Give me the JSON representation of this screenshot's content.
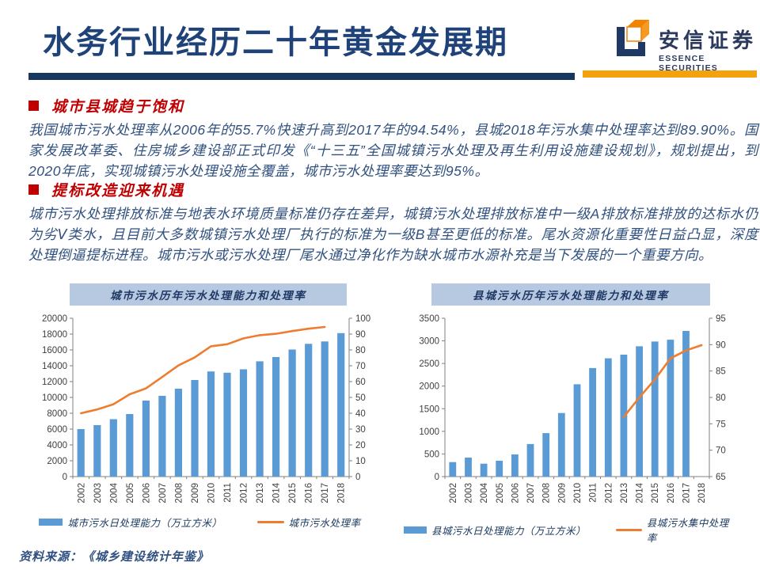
{
  "slide": {
    "title": "水务行业经历二十年黄金发展期",
    "source_note": "资料来源：《城乡建设统计年鉴》"
  },
  "logo": {
    "name_cn": "安信证券",
    "name_en": "ESSENCE SECURITIES"
  },
  "sections": [
    {
      "heading": "城市县城趋于饱和",
      "body": "我国城市污水处理率从2006年的55.7%快速升高到2017年的94.54%，县城2018年污水集中处理率达到89.90%。国家发展改革委、住房城乡建设部正式印发《“十三五”全国城镇污水处理及再生利用设施建设规划》，规划提出，到2020年底，实现城镇污水处理设施全覆盖，城市污水处理率要达到95%。"
    },
    {
      "heading": "提标改造迎来机遇",
      "body": "城市污水处理排放标准与地表水环境质量标准仍存在差异，城镇污水处理排放标准中一级A排放标准排放的达标水仍为劣Ⅴ类水，且目前大多数城镇污水处理厂执行的标准为一级B甚至更低的标准。尾水资源化重要性日益凸显，深度处理倒逼提标进程。城市污水或污水处理厂尾水通过净化作为缺水城市水源补充是当下发展的一个重要方向。"
    }
  ],
  "colors": {
    "title_blue": "#1F4379",
    "rule_blue": "#17375E",
    "rule_orange": "#F2A20C",
    "heading_red": "#C00000",
    "body_blue": "#31517F",
    "chart_title_bg": "#B6C9E0",
    "bar_blue": "#5B9BD5",
    "line_orange": "#ED7D31"
  },
  "chart_data": [
    {
      "type": "bar",
      "title": "城市污水历年污水处理能力和处理率",
      "categories": [
        "2002",
        "2003",
        "2004",
        "2005",
        "2006",
        "2007",
        "2008",
        "2009",
        "2010",
        "2011",
        "2012",
        "2013",
        "2014",
        "2015",
        "2016",
        "2017",
        "2018"
      ],
      "series": [
        {
          "name": "城市污水日处理能力（万立方米）",
          "type": "bar",
          "axis": "left",
          "values": [
            6000,
            6500,
            7250,
            7900,
            9600,
            10200,
            11100,
            12200,
            13280,
            13120,
            13550,
            14560,
            15100,
            16050,
            16770,
            17070,
            18120
          ]
        },
        {
          "name": "城市污水处理率",
          "type": "line",
          "axis": "right",
          "values": [
            40.0,
            42.4,
            45.7,
            52.0,
            55.7,
            62.9,
            70.2,
            75.3,
            82.3,
            83.6,
            87.3,
            89.3,
            90.2,
            91.9,
            93.4,
            94.5,
            null
          ]
        }
      ],
      "y_left": {
        "min": 0,
        "max": 20000,
        "step": 2000
      },
      "y_right": {
        "min": 0,
        "max": 100,
        "step": 10
      },
      "bar_color": "#5B9BD5",
      "line_color": "#ED7D31",
      "legend_position": "bottom",
      "grid": false
    },
    {
      "type": "bar",
      "title": "县城污水历年污水处理能力和处理率",
      "categories": [
        "2002",
        "2003",
        "2004",
        "2005",
        "2006",
        "2007",
        "2008",
        "2009",
        "2010",
        "2011",
        "2012",
        "2013",
        "2014",
        "2015",
        "2016",
        "2017",
        "2018"
      ],
      "series": [
        {
          "name": "县城污水日处理能力（万立方米）",
          "type": "bar",
          "axis": "left",
          "values": [
            320,
            420,
            285,
            350,
            490,
            720,
            960,
            1405,
            2040,
            2400,
            2615,
            2695,
            2880,
            2985,
            3025,
            3220,
            null
          ]
        },
        {
          "name": "县城污水集中处理率",
          "type": "line",
          "axis": "right",
          "values": [
            null,
            null,
            null,
            null,
            null,
            null,
            null,
            null,
            null,
            null,
            null,
            76.3,
            80.0,
            83.4,
            87.4,
            88.9,
            89.9
          ]
        }
      ],
      "y_left": {
        "min": 0,
        "max": 3500,
        "step": 500
      },
      "y_right": {
        "min": 65,
        "max": 95,
        "step": 5
      },
      "bar_color": "#5B9BD5",
      "line_color": "#ED7D31",
      "legend_position": "bottom",
      "grid": false
    }
  ]
}
